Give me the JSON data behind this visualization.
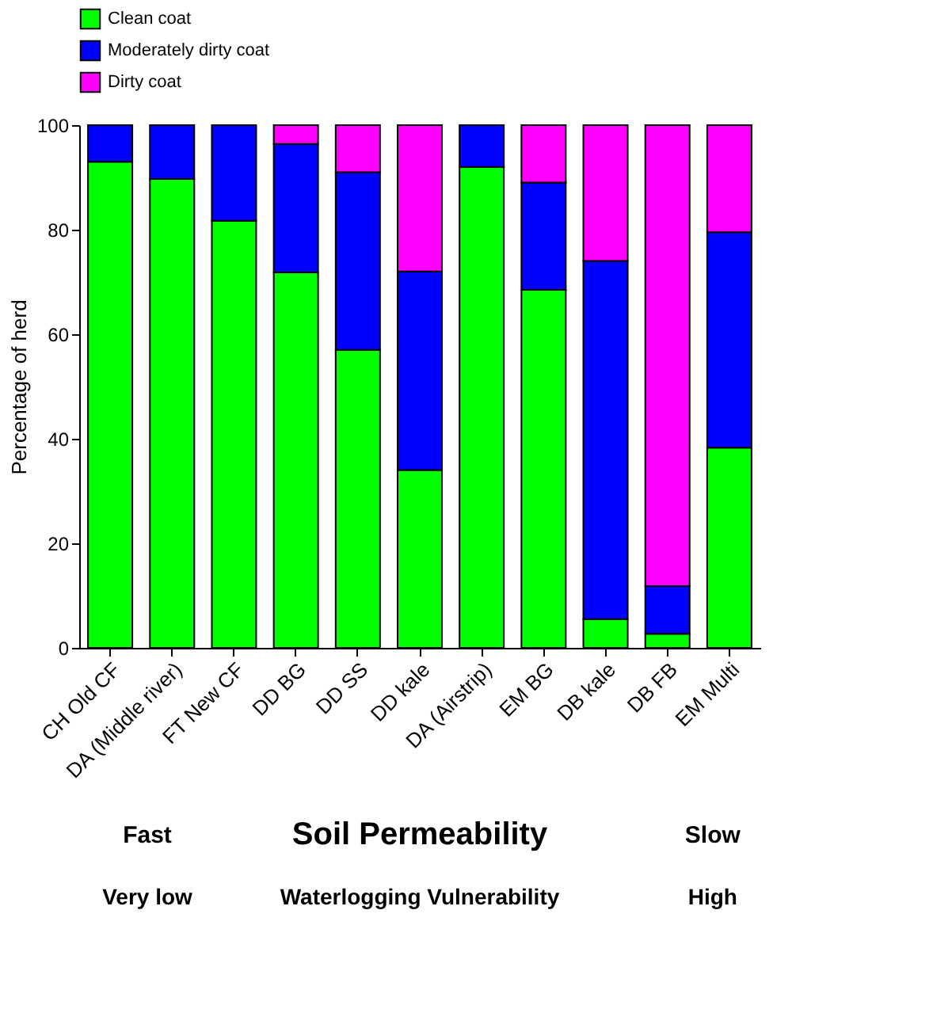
{
  "chart_data": {
    "type": "bar",
    "stacked": true,
    "ylabel": "Percentage of herd",
    "categories": [
      "CH Old CF",
      "DA (Middle river)",
      "FT New CF",
      "DD BG",
      "DD SS",
      "DD kale",
      "DA (Airstrip)",
      "EM BG",
      "DB kale",
      "DB FB",
      "EM Multi"
    ],
    "series": [
      {
        "name": "Clean coat",
        "color": "#00ff00",
        "values": [
          93,
          89.7,
          81.7,
          71.8,
          57,
          34,
          92,
          68.5,
          5.5,
          2.7,
          38.3
        ]
      },
      {
        "name": "Moderately dirty coat",
        "color": "#0000ff",
        "values": [
          7,
          10.3,
          18.3,
          24.6,
          34,
          38,
          8,
          20.5,
          68.5,
          9.1,
          41.2
        ]
      },
      {
        "name": "Dirty coat",
        "color": "#ff00ff",
        "values": [
          0,
          0,
          0,
          3.6,
          9,
          28,
          0,
          11,
          26,
          88.2,
          20.5
        ]
      }
    ],
    "ylim": [
      0,
      100
    ],
    "yticks": [
      0,
      20,
      40,
      60,
      80,
      100
    ],
    "grid": false,
    "legend": "top",
    "annotations": [
      "Fast",
      "Soil Permeability",
      "Slow",
      "Very low",
      "Waterlogging Vulnerability",
      "High"
    ]
  }
}
